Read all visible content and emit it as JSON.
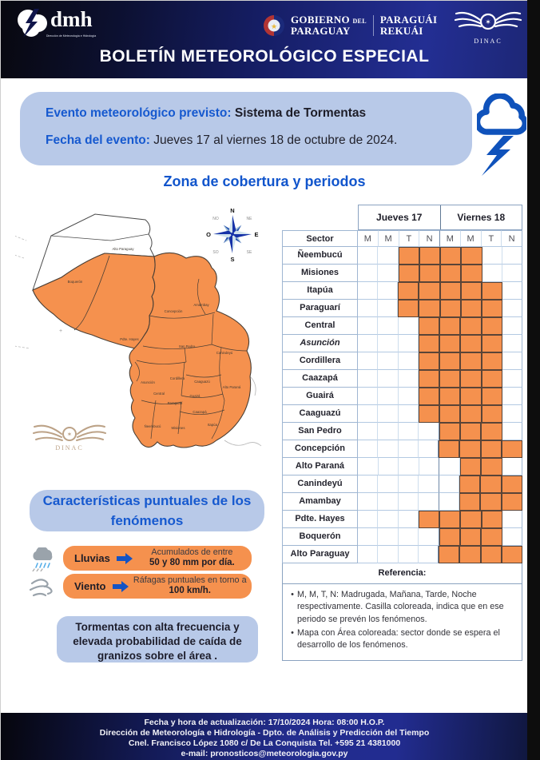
{
  "header": {
    "dmh_logo": {
      "name": "dmh",
      "tagline": "Dirección de Meteorología e Hidrología"
    },
    "gov_logo": {
      "line1": "GOBIERNO",
      "del": "DEL",
      "line2": "PARAGUAY",
      "line3": "PARAGUÁI",
      "line4": "REKUÁI"
    },
    "dinac_logo": {
      "label": "DINAC"
    },
    "title": "BOLETÍN METEOROLÓGICO ESPECIAL"
  },
  "event_box": {
    "event_label": "Evento meteorológico previsto:",
    "event_value": "Sistema de Tormentas",
    "date_label": "Fecha del evento:",
    "date_value": "Jueves 17 al viernes 18 de octubre de 2024."
  },
  "coverage": {
    "title": "Zona de cobertura y periodos",
    "map": {
      "compass": {
        "n": "N",
        "ne": "NE",
        "e": "E",
        "se": "SE",
        "s": "S",
        "so": "SO",
        "o": "O",
        "no": "NO"
      },
      "watermark": "DINAC",
      "labels": [
        "Alto Paraguay",
        "Boquerón",
        "Pdte. Hayes",
        "Concepción",
        "Amambay",
        "San Pedro",
        "Canindeyú",
        "Cordillera",
        "Caaguazú",
        "Alto Paraná",
        "Asunción",
        "Central",
        "Paraguarí",
        "Guairá",
        "Caazapá",
        "Ñeembucú",
        "Misiones",
        "Itapúa"
      ]
    }
  },
  "table": {
    "day_headers": [
      "Jueves 17",
      "Viernes 18"
    ],
    "sector_header": "Sector",
    "period_headers": [
      "M",
      "M",
      "T",
      "N",
      "M",
      "M",
      "T",
      "N"
    ],
    "rows": [
      {
        "label": "Ñeembucú",
        "italic": false,
        "cells": [
          0,
          0,
          1,
          1,
          1,
          1,
          0,
          0
        ]
      },
      {
        "label": "Misiones",
        "italic": false,
        "cells": [
          0,
          0,
          1,
          1,
          1,
          1,
          0,
          0
        ]
      },
      {
        "label": "Itapúa",
        "italic": false,
        "cells": [
          0,
          0,
          1,
          1,
          1,
          1,
          1,
          0
        ]
      },
      {
        "label": "Paraguarí",
        "italic": false,
        "cells": [
          0,
          0,
          1,
          1,
          1,
          1,
          1,
          0
        ]
      },
      {
        "label": "Central",
        "italic": false,
        "cells": [
          0,
          0,
          0,
          1,
          1,
          1,
          1,
          0
        ]
      },
      {
        "label": "Asunción",
        "italic": true,
        "cells": [
          0,
          0,
          0,
          1,
          1,
          1,
          1,
          0
        ]
      },
      {
        "label": "Cordillera",
        "italic": false,
        "cells": [
          0,
          0,
          0,
          1,
          1,
          1,
          1,
          0
        ]
      },
      {
        "label": "Caazapá",
        "italic": false,
        "cells": [
          0,
          0,
          0,
          1,
          1,
          1,
          1,
          0
        ]
      },
      {
        "label": "Guairá",
        "italic": false,
        "cells": [
          0,
          0,
          0,
          1,
          1,
          1,
          1,
          0
        ]
      },
      {
        "label": "Caaguazú",
        "italic": false,
        "cells": [
          0,
          0,
          0,
          1,
          1,
          1,
          1,
          0
        ]
      },
      {
        "label": "San Pedro",
        "italic": false,
        "cells": [
          0,
          0,
          0,
          0,
          1,
          1,
          1,
          0
        ]
      },
      {
        "label": "Concepción",
        "italic": false,
        "cells": [
          0,
          0,
          0,
          0,
          1,
          1,
          1,
          1
        ]
      },
      {
        "label": "Alto Paraná",
        "italic": false,
        "cells": [
          0,
          0,
          0,
          0,
          0,
          1,
          1,
          0
        ]
      },
      {
        "label": "Canindeyú",
        "italic": false,
        "cells": [
          0,
          0,
          0,
          0,
          0,
          1,
          1,
          1
        ]
      },
      {
        "label": "Amambay",
        "italic": false,
        "cells": [
          0,
          0,
          0,
          0,
          0,
          1,
          1,
          1
        ]
      },
      {
        "label": "Pdte. Hayes",
        "italic": false,
        "cells": [
          0,
          0,
          0,
          1,
          1,
          1,
          1,
          0
        ]
      },
      {
        "label": "Boquerón",
        "italic": false,
        "cells": [
          0,
          0,
          0,
          0,
          1,
          1,
          1,
          0
        ]
      },
      {
        "label": "Alto Paraguay",
        "italic": false,
        "cells": [
          0,
          0,
          0,
          0,
          1,
          1,
          1,
          1
        ]
      }
    ],
    "reference_title": "Referencia:",
    "reference_items": [
      "M, M, T, N: Madrugada, Mañana, Tarde, Noche respectivamente. Casilla coloreada, indica que en ese periodo se prevén los fenómenos.",
      "Mapa con Área coloreada: sector donde se espera el desarrollo de los fenómenos."
    ]
  },
  "characteristics": {
    "title_line1": "Características puntuales de los",
    "title_line2": "fenómenos",
    "items": [
      {
        "label": "Lluvias",
        "icon": "rain-cloud-icon",
        "text_normal": "Acumulados de entre",
        "text_bold": "50 y 80 mm por día."
      },
      {
        "label": "Viento",
        "icon": "wind-icon",
        "text_normal": "Ráfagas puntuales en torno a",
        "text_bold": "100 km/h."
      }
    ],
    "note_line1": "Tormentas con alta frecuencia y",
    "note_line2": "elevada probabilidad de caída de",
    "note_line3": "granizos sobre el área ."
  },
  "footer": {
    "line1": "Fecha y hora de actualización: 17/10/2024 Hora: 08:00 H.O.P.",
    "line2": "Dirección de Meteorología e Hidrología - Dpto. de Análisis y Predicción del Tiempo",
    "line3": "Cnel. Francisco López 1080 c/ De La Conquista Tel. +595 21 4381000",
    "line4": "e-mail: pronosticos@meteorologia.gov.py"
  },
  "colors": {
    "accent_blue": "#1659cf",
    "light_blue_box": "#b8c9e8",
    "orange_highlight": "#f5914e",
    "navy_band": "#1d2776"
  }
}
